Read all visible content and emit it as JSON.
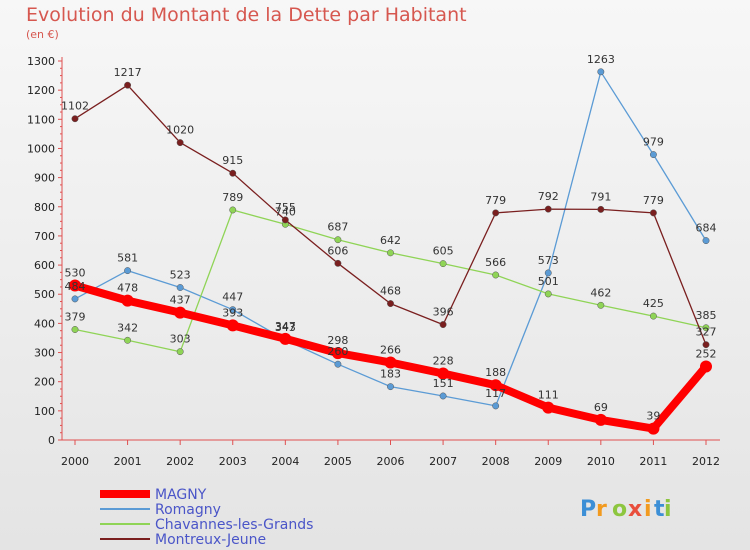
{
  "chart_data": {
    "type": "line",
    "title": "Evolution du Montant de la Dette par Habitant",
    "subtitle": "(en €)",
    "xlabel": "",
    "ylabel": "",
    "x": [
      "2000",
      "2001",
      "2002",
      "2003",
      "2004",
      "2005",
      "2006",
      "2007",
      "2008",
      "2009",
      "2010",
      "2011",
      "2012"
    ],
    "ylim": [
      0,
      1300
    ],
    "yticks": [
      0,
      100,
      200,
      300,
      400,
      500,
      600,
      700,
      800,
      900,
      1000,
      1100,
      1200,
      1300
    ],
    "grid": false,
    "legend_position": "bottom-left",
    "series": [
      {
        "name": "MAGNY",
        "color": "#ff0000",
        "values": [
          530,
          478,
          437,
          393,
          347,
          298,
          266,
          228,
          188,
          111,
          69,
          39,
          252
        ],
        "labels": [
          "530",
          "478",
          "437",
          "393",
          "347",
          "298",
          "266",
          "228",
          "188",
          "111",
          "69",
          "39",
          "252"
        ]
      },
      {
        "name": "Romagny",
        "color": "#5b9bd5",
        "values": [
          484,
          581,
          523,
          447,
          343,
          260,
          183,
          151,
          117,
          573,
          1263,
          979,
          684
        ],
        "labels": [
          "484",
          "581",
          "523",
          "447",
          "343",
          "260",
          "183",
          "151",
          "117",
          "573",
          "1263",
          "979",
          "684"
        ]
      },
      {
        "name": "Chavannes-les-Grands",
        "color": "#8fd456",
        "values": [
          379,
          342,
          303,
          789,
          740,
          687,
          642,
          605,
          566,
          501,
          462,
          425,
          385
        ],
        "labels": [
          "379",
          "342",
          "303",
          "789",
          "740",
          "687",
          "642",
          "605",
          "566",
          "501",
          "462",
          "425",
          "385"
        ]
      },
      {
        "name": "Montreux-Jeune",
        "color": "#7a1f1f",
        "values": [
          1102,
          1217,
          1020,
          915,
          755,
          606,
          468,
          396,
          779,
          792,
          791,
          779,
          327
        ],
        "labels": [
          "1102",
          "1217",
          "1020",
          "915",
          "755",
          "606",
          "468",
          "396",
          "779",
          "792",
          "791",
          "779",
          "327"
        ]
      }
    ]
  },
  "brand": {
    "letters": [
      "P",
      "r",
      "o",
      "x",
      "i",
      "t",
      "i"
    ],
    "colors": [
      "#3c8fd6",
      "#f29a1f",
      "#8dc63f",
      "#e94e3c",
      "#f29a1f",
      "#3c8fd6",
      "#8dc63f"
    ]
  }
}
